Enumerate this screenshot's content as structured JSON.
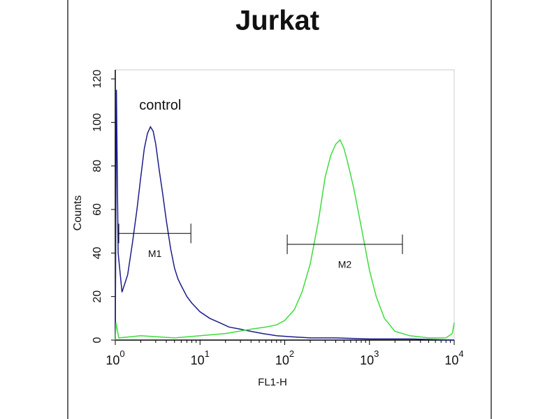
{
  "chart_data": {
    "type": "line",
    "title": "Jurkat",
    "xlabel": "FL1-H",
    "ylabel": "Counts",
    "xscale": "log",
    "xlim": [
      1,
      10000
    ],
    "ylim": [
      0,
      120
    ],
    "xticks": [
      {
        "value": 1,
        "label": "10",
        "exponent": "0"
      },
      {
        "value": 10,
        "label": "10",
        "exponent": "1"
      },
      {
        "value": 100,
        "label": "10",
        "exponent": "2"
      },
      {
        "value": 1000,
        "label": "10",
        "exponent": "3"
      },
      {
        "value": 10000,
        "label": "10",
        "exponent": "4"
      }
    ],
    "yticks": [
      0,
      20,
      40,
      60,
      80,
      100,
      120
    ],
    "series": [
      {
        "name": "control",
        "color": "#1c1c8a",
        "x": [
          1,
          1.03,
          1.08,
          1.2,
          1.4,
          1.6,
          1.8,
          2.0,
          2.2,
          2.4,
          2.6,
          2.8,
          3.0,
          3.3,
          3.6,
          4.0,
          4.5,
          5.0,
          5.5,
          6.0,
          7.0,
          8.0,
          10,
          13,
          17,
          22,
          30,
          40,
          55,
          80,
          120,
          200,
          400,
          1000,
          3000,
          10000
        ],
        "values": [
          0,
          115,
          40,
          22,
          30,
          45,
          60,
          75,
          88,
          95,
          98,
          96,
          90,
          78,
          68,
          55,
          42,
          33,
          28,
          25,
          20,
          17,
          13,
          10,
          8,
          6,
          5,
          4,
          3,
          2,
          1.5,
          1,
          1,
          0.5,
          0.5,
          0
        ]
      },
      {
        "color": "#3ddc3d",
        "x": [
          1,
          1.02,
          1.1,
          2,
          5,
          10,
          20,
          40,
          60,
          80,
          100,
          130,
          160,
          200,
          250,
          300,
          350,
          400,
          450,
          500,
          550,
          650,
          800,
          1000,
          1200,
          1500,
          2000,
          3000,
          5000,
          8000,
          9500,
          10000
        ],
        "values": [
          0,
          8,
          1,
          2,
          1,
          2,
          3,
          5,
          6,
          7,
          9,
          14,
          22,
          35,
          55,
          75,
          85,
          90,
          92,
          88,
          82,
          70,
          52,
          32,
          20,
          10,
          4,
          2,
          1,
          1,
          3,
          8
        ]
      }
    ],
    "markers": [
      {
        "label": "M1",
        "x": [
          1.1,
          7.8
        ],
        "y": 49
      },
      {
        "label": "M2",
        "x": [
          107,
          2450
        ],
        "y": 44
      }
    ]
  }
}
